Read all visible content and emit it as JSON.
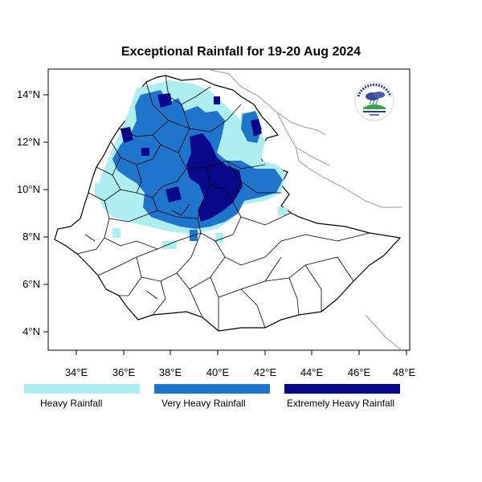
{
  "title": "Exceptional Rainfall for 19-20 Aug 2024",
  "axes": {
    "x_ticks": [
      "34°E",
      "36°E",
      "38°E",
      "40°E",
      "42°E",
      "44°E",
      "46°E",
      "48°E"
    ],
    "y_ticks": [
      "14°N",
      "12°N",
      "10°N",
      "8°N",
      "6°N",
      "4°N"
    ]
  },
  "legend": [
    {
      "label": "Heavy Rainfall",
      "color": "#aeeef0"
    },
    {
      "label": "Very Heavy Rainfall",
      "color": "#1f75cc"
    },
    {
      "label": "Extremely Heavy Rainfall",
      "color": "#08088a"
    }
  ],
  "colors": {
    "heavy": "#aeeef0",
    "very_heavy": "#1f75cc",
    "extreme": "#08088a",
    "boundary": "#000000",
    "neighbor_border": "#9a9a9a"
  },
  "logo": {
    "icon": "meteorology-agency-logo"
  }
}
